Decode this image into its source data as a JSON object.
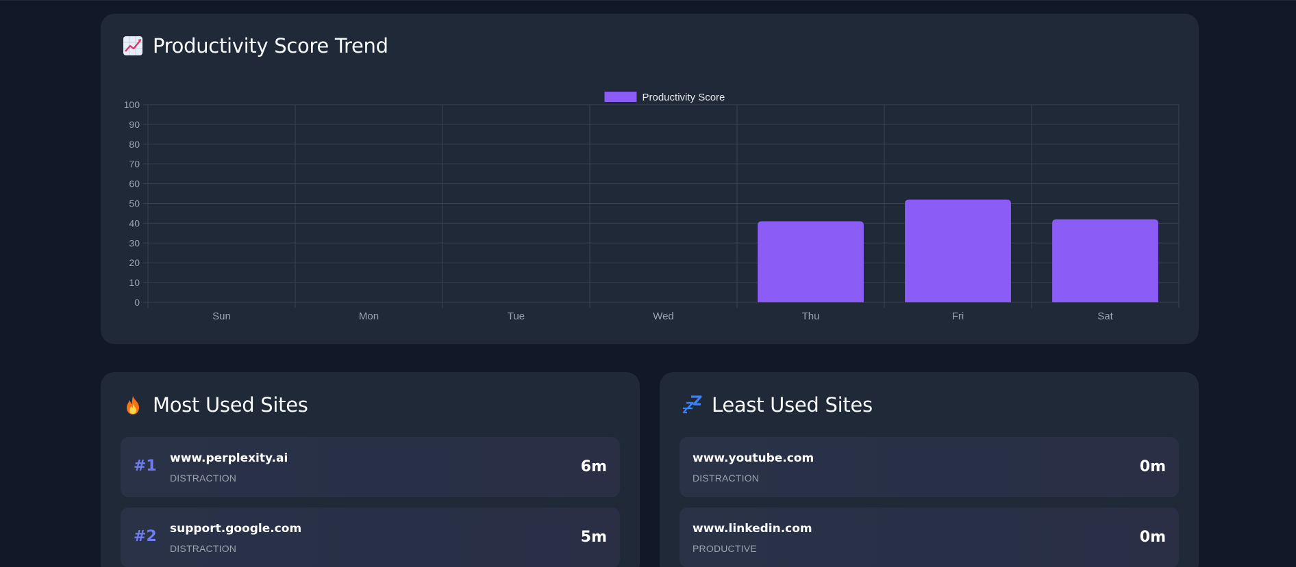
{
  "trend": {
    "title": "Productivity Score Trend",
    "icon": "chart-increasing-icon"
  },
  "chart_data": {
    "type": "bar",
    "categories": [
      "Sun",
      "Mon",
      "Tue",
      "Wed",
      "Thu",
      "Fri",
      "Sat"
    ],
    "series": [
      {
        "name": "Productivity Score",
        "values": [
          0,
          0,
          0,
          0,
          41,
          52,
          42
        ],
        "color": "#8b5cf6"
      }
    ],
    "ylim": [
      0,
      100
    ],
    "yticks": [
      0,
      10,
      20,
      30,
      40,
      50,
      60,
      70,
      80,
      90,
      100
    ],
    "grid": true,
    "legend": "top-center",
    "xlabel": "",
    "ylabel": ""
  },
  "most_used": {
    "title": "Most Used Sites",
    "icon": "fire-icon",
    "items": [
      {
        "rank": "#1",
        "site": "www.perplexity.ai",
        "category": "DISTRACTION",
        "time": "6m"
      },
      {
        "rank": "#2",
        "site": "support.google.com",
        "category": "DISTRACTION",
        "time": "5m"
      }
    ]
  },
  "least_used": {
    "title": "Least Used Sites",
    "icon": "zzz-icon",
    "items": [
      {
        "site": "www.youtube.com",
        "category": "DISTRACTION",
        "time": "0m"
      },
      {
        "site": "www.linkedin.com",
        "category": "PRODUCTIVE",
        "time": "0m"
      }
    ]
  },
  "colors": {
    "background": "#111827",
    "card": "#1f2937",
    "bar": "#8b5cf6",
    "rank": "#6f7cf0"
  }
}
